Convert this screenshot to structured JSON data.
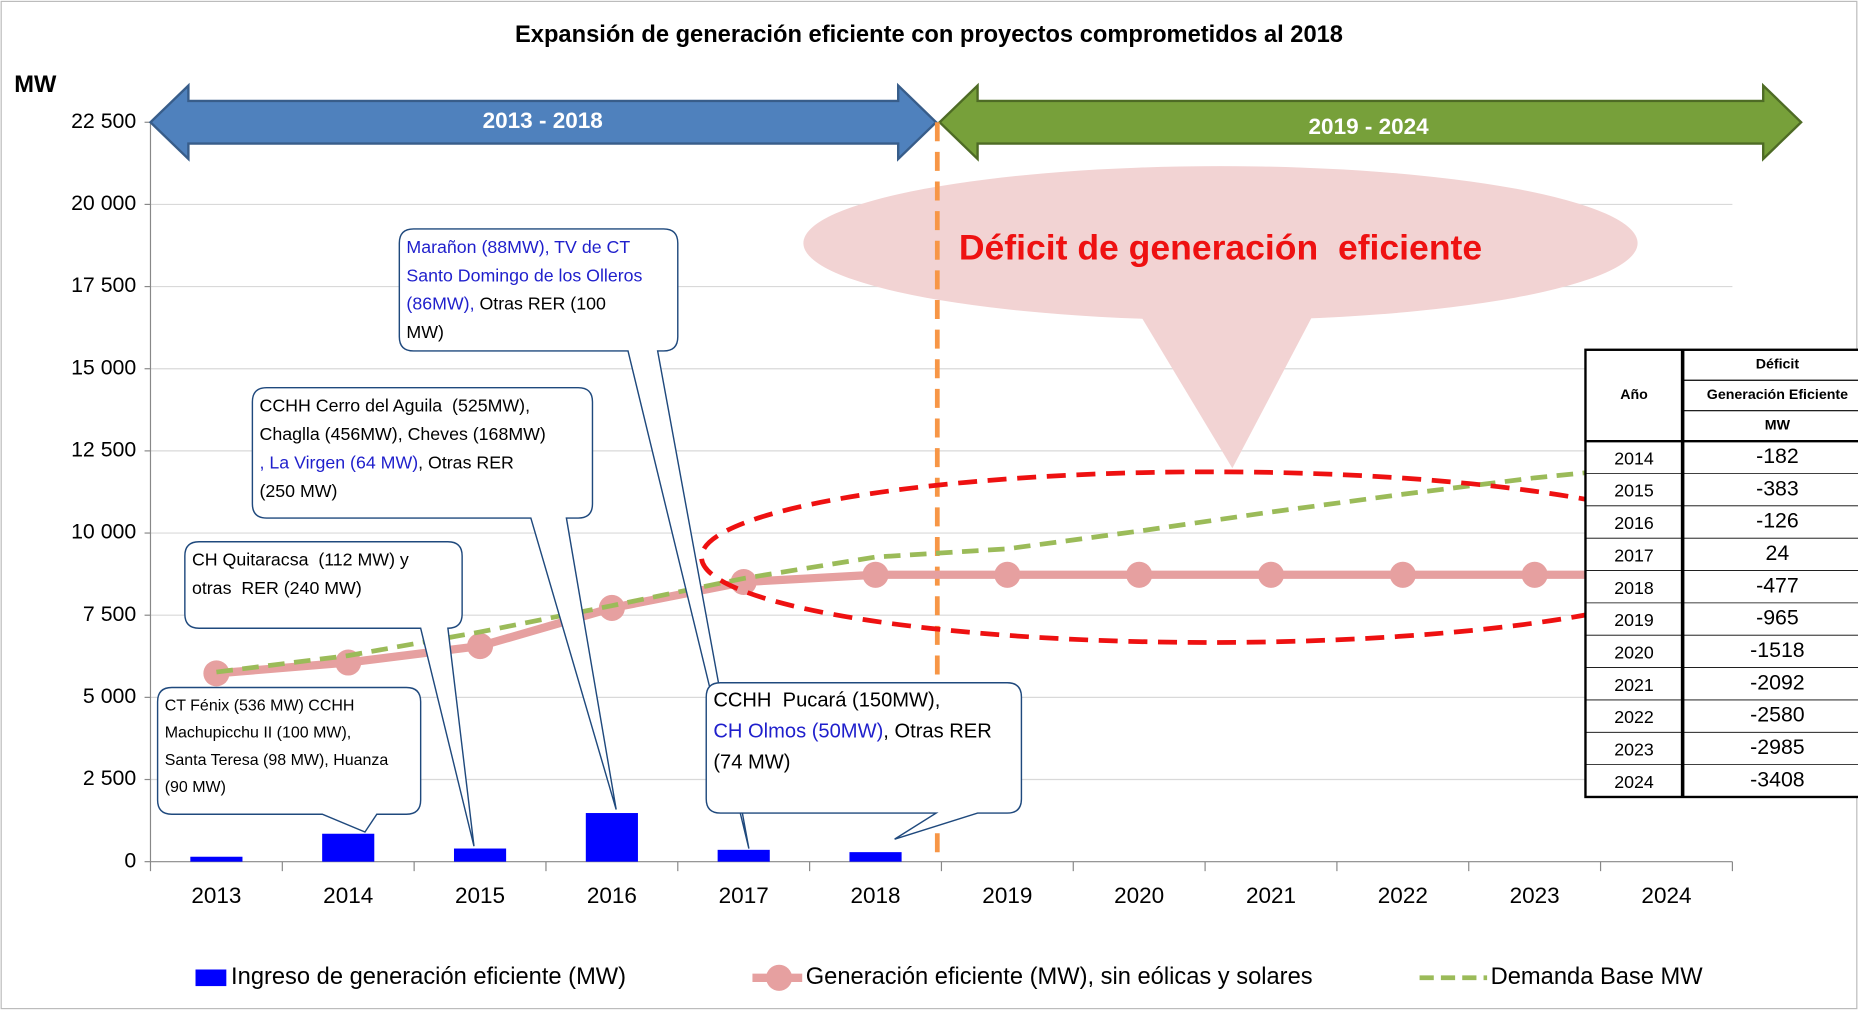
{
  "chart_data": {
    "type": "combo",
    "title": "Expansión de generación eficiente con proyectos comprometidos al 2018",
    "y_label": "MW",
    "categories": [
      "2013",
      "2014",
      "2015",
      "2016",
      "2017",
      "2018",
      "2019",
      "2020",
      "2021",
      "2022",
      "2023",
      "2024"
    ],
    "series": [
      {
        "name": "Ingreso de generación eficiente (MW)",
        "type": "bar",
        "color": "#0000ff",
        "values": [
          150,
          850,
          400,
          1480,
          360,
          290,
          null,
          null,
          null,
          null,
          null,
          null
        ]
      },
      {
        "name": "Generación eficiente (MW), sin eólicas y solares",
        "type": "line",
        "color": "#e6a0a0",
        "markers": true,
        "dashed": false,
        "values": [
          5730,
          6060,
          6560,
          7720,
          8510,
          8730,
          8730,
          8730,
          8730,
          8730,
          8730,
          8730
        ]
      },
      {
        "name": "Demanda Base MW",
        "type": "line",
        "color": "#9bbb59",
        "markers": false,
        "dashed": true,
        "values": [
          5770,
          6270,
          6990,
          7790,
          8620,
          9270,
          9520,
          10060,
          10640,
          11180,
          11680,
          12080
        ]
      }
    ],
    "ylim": [
      0,
      22500
    ],
    "yticks": [
      0,
      {
        "value": 2500,
        "label": "2 500"
      },
      {
        "value": 5000,
        "label": "5 000"
      },
      {
        "value": 7500,
        "label": "7 500"
      },
      {
        "value": 10000,
        "label": "10 000"
      },
      {
        "value": 12500,
        "label": "12 500"
      },
      {
        "value": 15000,
        "label": "15 000"
      },
      {
        "value": 17500,
        "label": "17 500"
      },
      {
        "value": 20000,
        "label": "20 000"
      },
      {
        "value": 22500,
        "label": "22 500"
      }
    ],
    "grid": true,
    "legend": "bottom",
    "periods": [
      "2013 - 2018",
      "2019 - 2024"
    ],
    "deficit_note": "Déficit de generación  eficiente",
    "callouts": [
      {
        "lines": [
          [
            {
              "text": "Marañon (88MW), TV de CT",
              "color": "#1f1fcc"
            }
          ],
          [
            {
              "text": "Santo Domingo de los Olleros",
              "color": "#1f1fcc"
            }
          ],
          [
            {
              "text": "(86MW),",
              "color": "#1f1fcc"
            },
            {
              "text": " Otras RER (100",
              "color": "#000000"
            }
          ],
          [
            {
              "text": "MW)",
              "color": "#000000"
            }
          ]
        ]
      },
      {
        "lines": [
          [
            {
              "text": "CCHH Cerro del Aguila  (525MW),",
              "color": "#000000"
            }
          ],
          [
            {
              "text": "Chaglla (456MW), Cheves (168MW)",
              "color": "#000000"
            }
          ],
          [
            {
              "text": ", La Virgen (64 MW)",
              "color": "#1f1fcc"
            },
            {
              "text": ", Otras RER",
              "color": "#000000"
            }
          ],
          [
            {
              "text": "(250 MW)",
              "color": "#000000"
            }
          ]
        ]
      },
      {
        "lines": [
          [
            {
              "text": "CH Quitaracsa  (112 MW) y",
              "color": "#000000"
            }
          ],
          [
            {
              "text": "otras  RER (240 MW)",
              "color": "#000000"
            }
          ]
        ]
      },
      {
        "lines": [
          [
            {
              "text": "CT Fénix (536 MW) CCHH",
              "color": "#000000"
            }
          ],
          [
            {
              "text": "Machupicchu II (100 MW),",
              "color": "#000000"
            }
          ],
          [
            {
              "text": "Santa Teresa (98 MW), Huanza",
              "color": "#000000"
            }
          ],
          [
            {
              "text": "(90 MW)",
              "color": "#000000"
            }
          ]
        ]
      },
      {
        "lines": [
          [
            {
              "text": "CCHH  Pucará (150MW),",
              "color": "#000000"
            }
          ],
          [
            {
              "text": "CH Olmos (50MW)",
              "color": "#1f1fcc"
            },
            {
              "text": ", Otras RER",
              "color": "#000000"
            }
          ],
          [
            {
              "text": "(74 MW)",
              "color": "#000000"
            }
          ]
        ]
      }
    ],
    "table": {
      "year_header": "Año",
      "value_header": [
        "Déficit",
        "Generación Eficiente",
        "MW"
      ],
      "rows": [
        [
          "2014",
          -182
        ],
        [
          "2015",
          -383
        ],
        [
          "2016",
          -126
        ],
        [
          "2017",
          24
        ],
        [
          "2018",
          -477
        ],
        [
          "2019",
          -965
        ],
        [
          "2020",
          -1518
        ],
        [
          "2021",
          -2092
        ],
        [
          "2022",
          -2580
        ],
        [
          "2023",
          -2985
        ],
        [
          "2024",
          -3408
        ]
      ]
    }
  }
}
